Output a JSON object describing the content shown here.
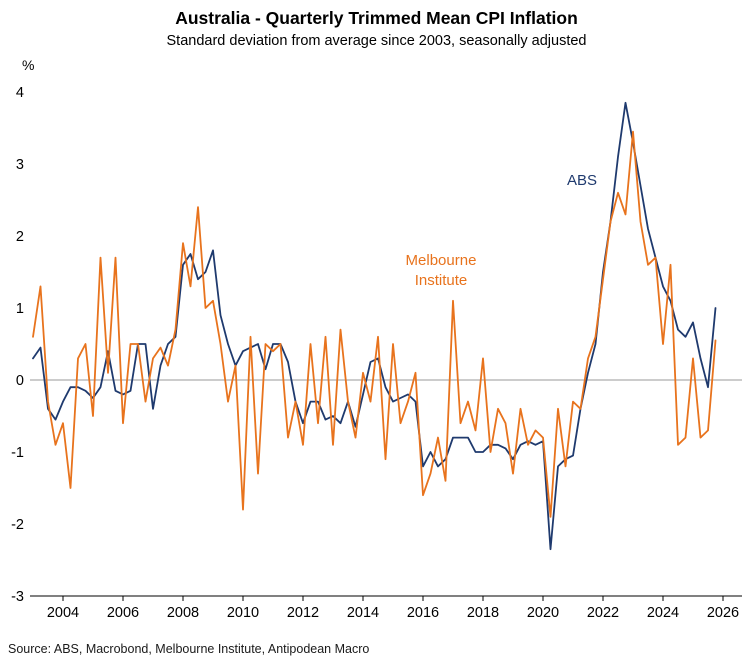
{
  "chart_data": {
    "type": "line",
    "title": "Australia - Quarterly Trimmed Mean CPI Inflation",
    "subtitle": "Standard deviation from average since 2003, seasonally adjusted",
    "unit_label": "%",
    "source": "Source: ABS, Macrobond, Melbourne Institute, Antipodean Macro",
    "x_start": 2003.0,
    "x_step": 0.25,
    "xlim": [
      2003.0,
      2026.6
    ],
    "ylim": [
      -3,
      4
    ],
    "y_ticks": [
      4,
      3,
      2,
      1,
      0,
      -1,
      -2,
      -3
    ],
    "x_ticks": [
      2004,
      2006,
      2008,
      2010,
      2012,
      2014,
      2016,
      2018,
      2020,
      2022,
      2024,
      2026
    ],
    "grid": false,
    "zero_line": true,
    "legend_position": "annotated-inline",
    "series": [
      {
        "name": "ABS",
        "color": "#1f3a6e",
        "values": [
          0.3,
          0.45,
          -0.4,
          -0.55,
          -0.3,
          -0.1,
          -0.1,
          -0.15,
          -0.25,
          -0.1,
          0.4,
          -0.15,
          -0.2,
          -0.15,
          0.5,
          0.5,
          -0.4,
          0.2,
          0.5,
          0.6,
          1.6,
          1.75,
          1.4,
          1.5,
          1.8,
          0.9,
          0.5,
          0.2,
          0.4,
          0.45,
          0.5,
          0.15,
          0.5,
          0.5,
          0.25,
          -0.3,
          -0.6,
          -0.3,
          -0.3,
          -0.55,
          -0.5,
          -0.6,
          -0.3,
          -0.65,
          -0.2,
          0.25,
          0.3,
          -0.1,
          -0.3,
          -0.25,
          -0.2,
          -0.3,
          -1.2,
          -1.0,
          -1.2,
          -1.1,
          -0.8,
          -0.8,
          -0.8,
          -1.0,
          -1.0,
          -0.9,
          -0.9,
          -0.95,
          -1.1,
          -0.9,
          -0.85,
          -0.9,
          -0.85,
          -2.35,
          -1.2,
          -1.1,
          -1.05,
          -0.4,
          0.1,
          0.5,
          1.5,
          2.2,
          3.1,
          3.85,
          3.3,
          2.7,
          2.1,
          1.7,
          1.3,
          1.1,
          0.7,
          0.6,
          0.8,
          0.3,
          -0.1,
          1.0
        ]
      },
      {
        "name": "Melbourne Institute",
        "color": "#e8731d",
        "values": [
          0.6,
          1.3,
          -0.3,
          -0.9,
          -0.6,
          -1.5,
          0.3,
          0.5,
          -0.5,
          1.7,
          0.1,
          1.7,
          -0.6,
          0.5,
          0.5,
          -0.3,
          0.3,
          0.45,
          0.2,
          0.7,
          1.9,
          1.3,
          2.4,
          1.0,
          1.1,
          0.5,
          -0.3,
          0.2,
          -1.8,
          0.6,
          -1.3,
          0.5,
          0.4,
          0.5,
          -0.8,
          -0.3,
          -0.9,
          0.5,
          -0.6,
          0.6,
          -0.9,
          0.7,
          -0.3,
          -0.8,
          0.1,
          -0.3,
          0.6,
          -1.1,
          0.5,
          -0.6,
          -0.3,
          0.1,
          -1.6,
          -1.3,
          -0.8,
          -1.4,
          1.1,
          -0.6,
          -0.3,
          -0.7,
          0.3,
          -1.0,
          -0.4,
          -0.6,
          -1.3,
          -0.4,
          -0.9,
          -0.7,
          -0.8,
          -1.9,
          -0.4,
          -1.2,
          -0.3,
          -0.4,
          0.3,
          0.6,
          1.4,
          2.2,
          2.6,
          2.3,
          3.45,
          2.2,
          1.6,
          1.7,
          0.5,
          1.6,
          -0.9,
          -0.8,
          0.3,
          -0.8,
          -0.7,
          0.55
        ]
      }
    ],
    "annotations": [
      {
        "lines": [
          "ABS"
        ],
        "color": "#1f3a6e",
        "x": 2021.3,
        "y": 2.71
      },
      {
        "lines": [
          "Melbourne",
          "Institute"
        ],
        "color": "#e8731d",
        "x": 2016.6,
        "y": 1.6
      }
    ]
  }
}
